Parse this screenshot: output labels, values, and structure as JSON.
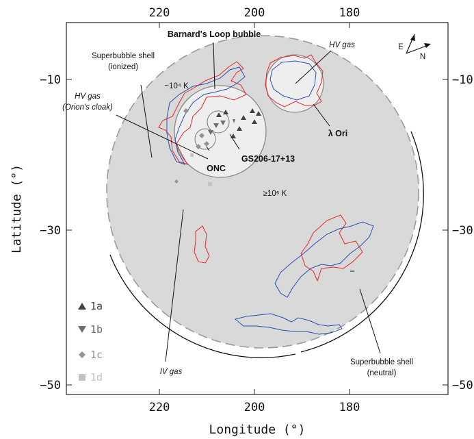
{
  "axes": {
    "xlabel": "Longitude (°)",
    "ylabel": "Latitude (°)",
    "x_ticks": [
      "220",
      "200",
      "180"
    ],
    "top_ticks": [
      "220",
      "200",
      "180"
    ],
    "y_ticks": [
      "−10",
      "−30",
      "−50"
    ],
    "right_ticks": [
      "−10",
      "−30",
      "−50"
    ]
  },
  "compass": {
    "east": "E",
    "north": "N"
  },
  "labels": {
    "barnards_loop": "Barnard's Loop bubble",
    "shell_ionized_1": "Superbubble shell",
    "shell_ionized_2": "(ionized)",
    "temp_1e4": "~10⁴ K",
    "hv_gas_cloak_1": "HV gas",
    "hv_gas_cloak_2": "(Orion's cloak)",
    "hv_gas_lambda": "HV gas",
    "lambda_ori": "λ Ori",
    "gs206": "GS206-17+13",
    "onc": "ONC",
    "temp_1e6": "≥10⁶ K",
    "iv_gas": "IV gas",
    "shell_neutral_1": "Superbubble shell",
    "shell_neutral_2": "(neutral)"
  },
  "legend": [
    {
      "label": "1a",
      "marker": "triangle-up",
      "color": "#444444"
    },
    {
      "label": "1b",
      "marker": "triangle-down",
      "color": "#6e6e6e"
    },
    {
      "label": "1c",
      "marker": "diamond",
      "color": "#939393"
    },
    {
      "label": "1d",
      "marker": "square",
      "color": "#c4c4c4"
    }
  ],
  "colors": {
    "bubble_fill": "#d9d9d9",
    "inner_fill": "#eeeeee",
    "red_contour": "#e8262b",
    "blue_contour": "#2b4ea8"
  }
}
